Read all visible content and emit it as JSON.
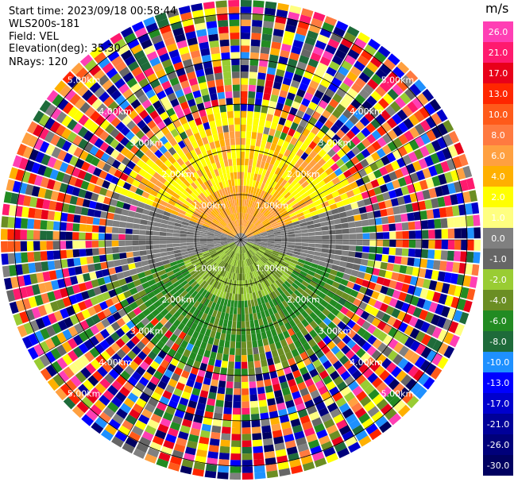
{
  "header": {
    "start_time": "Start time: 2023/09/18 00:58:44",
    "instrument": "WLS200s-181",
    "field": "Field: VEL",
    "elevation": "Elevation(deg): 35.30",
    "nrays": "NRays: 120"
  },
  "colorbar": {
    "unit": "m/s",
    "levels": [
      "26.0",
      "21.0",
      "17.0",
      "13.0",
      "10.0",
      "8.0",
      "6.0",
      "4.0",
      "2.0",
      "1.0",
      "0.0",
      "-1.0",
      "-2.0",
      "-4.0",
      "-6.0",
      "-8.0",
      "-10.0",
      "-13.0",
      "-17.0",
      "-21.0",
      "-26.0",
      "-30.0"
    ],
    "colors": [
      "#ff3fb4",
      "#ff1a6e",
      "#e8001a",
      "#ff2600",
      "#ff5a1a",
      "#ff7a40",
      "#ffa040",
      "#ffb000",
      "#ffff00",
      "#ffff80",
      "#808080",
      "#666666",
      "#99cc33",
      "#6b8e23",
      "#228b22",
      "#1e6b3a",
      "#1e90ff",
      "#0000ff",
      "#0000cd",
      "#000099",
      "#00007a",
      "#000060"
    ]
  },
  "chart_data": {
    "type": "ppi",
    "title": "",
    "field": "VEL",
    "unit": "m/s",
    "nrays": 120,
    "range_rings_km": [
      "1.00km",
      "2.00km",
      "3.00km",
      "4.00km",
      "5.00km"
    ],
    "max_range_km": 5.3,
    "color_range": [
      -30.0,
      26.0
    ],
    "near_field_pattern": {
      "north_half": "positive velocities (yellow/orange, ~2 to 6 m/s)",
      "east_sector": "near zero (gray)",
      "south_half": "negative velocities (green, ~-2 to -8 m/s)",
      "outer_ranges": "noisy, full color range"
    }
  },
  "colors": {
    "background": "#ffffff",
    "ring_line": "#000000"
  }
}
